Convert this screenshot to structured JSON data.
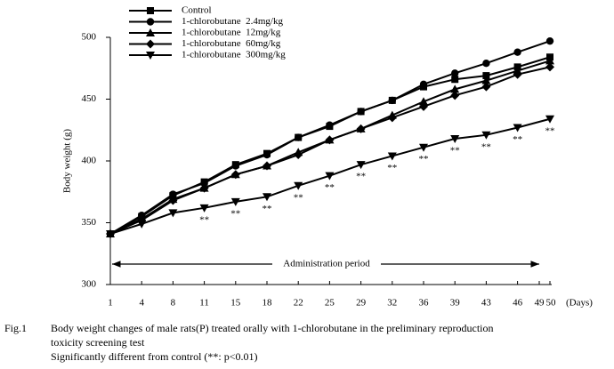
{
  "chart_data": {
    "type": "line",
    "y_label": "Body weight (g)",
    "x_label": "(Days)",
    "categories": [
      "1",
      "4",
      "8",
      "11",
      "15",
      "18",
      "22",
      "25",
      "29",
      "32",
      "36",
      "39",
      "43",
      "46",
      "49",
      "50"
    ],
    "ylim": [
      300,
      500
    ],
    "yticks": [
      300,
      350,
      400,
      450,
      500
    ],
    "series": [
      {
        "name": "Control",
        "color": "#000000",
        "marker": "square",
        "values": [
          341,
          355,
          372,
          383,
          397,
          406,
          419,
          428,
          440,
          449,
          460,
          466,
          469,
          476,
          null,
          484
        ]
      },
      {
        "name": "1-chlorobutane  2.4mg/kg",
        "color": "#000000",
        "marker": "circle",
        "values": [
          341,
          356,
          373,
          382,
          396,
          405,
          419,
          429,
          440,
          449,
          462,
          471,
          479,
          488,
          null,
          497
        ]
      },
      {
        "name": "1-chlorobutane  12mg/kg",
        "color": "#000000",
        "marker": "triangle",
        "values": [
          341,
          353,
          369,
          378,
          389,
          396,
          407,
          417,
          426,
          437,
          448,
          458,
          465,
          473,
          null,
          481
        ]
      },
      {
        "name": "1-chlorobutane  60mg/kg",
        "color": "#000000",
        "marker": "diamond",
        "values": [
          341,
          352,
          368,
          378,
          389,
          396,
          405,
          417,
          426,
          435,
          444,
          453,
          460,
          470,
          null,
          476
        ]
      },
      {
        "name": "1-chlorobutane  300mg/kg",
        "color": "#000000",
        "marker": "triangle-down",
        "values": [
          341,
          349,
          358,
          362,
          367,
          371,
          380,
          388,
          397,
          404,
          411,
          418,
          421,
          427,
          null,
          434
        ],
        "significance_labels": [
          null,
          null,
          null,
          "**",
          "**",
          "**",
          "**",
          "**",
          "**",
          "**",
          "**",
          "**",
          "**",
          "**",
          null,
          "**"
        ]
      }
    ],
    "period_annotation": "Administration period",
    "caption": {
      "figure": "Fig.1",
      "lines": [
        "Body weight changes of male rats(P) treated orally with 1-chlorobutane in the preliminary reproduction",
        "toxicity screening test",
        "Significantly different from control (**: p<0.01)"
      ]
    }
  }
}
